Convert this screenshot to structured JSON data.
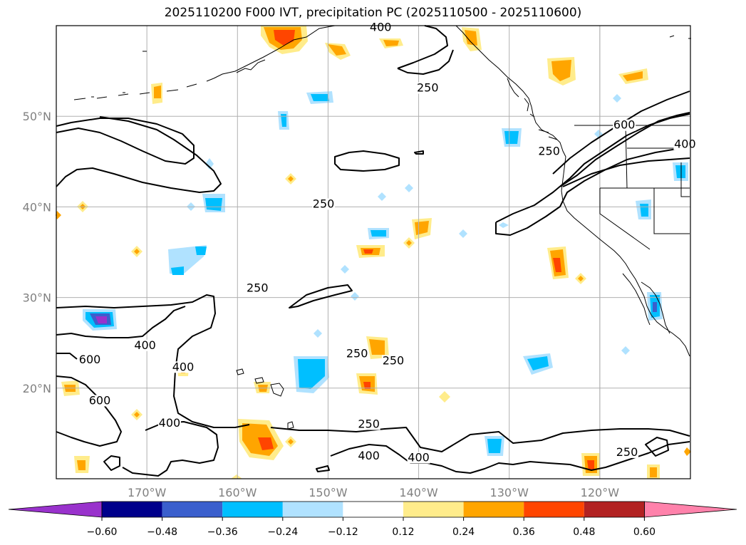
{
  "title": "2025110200 F000 IVT, precipitation PC (2025110500 - 2025110600)",
  "map": {
    "lon_range": [
      -180,
      -110
    ],
    "lat_range": [
      10,
      60
    ],
    "lat_ticks": [
      {
        "lat": 20,
        "label": "20°N"
      },
      {
        "lat": 30,
        "label": "30°N"
      },
      {
        "lat": 40,
        "label": "40°N"
      },
      {
        "lat": 50,
        "label": "50°N"
      }
    ],
    "lon_ticks": [
      {
        "lon": -170,
        "label": "170°W"
      },
      {
        "lon": -160,
        "label": "160°W"
      },
      {
        "lon": -150,
        "label": "150°W"
      },
      {
        "lon": -140,
        "label": "140°W"
      },
      {
        "lon": -130,
        "label": "130°W"
      },
      {
        "lon": -120,
        "label": "120°W"
      }
    ],
    "grid": true,
    "contour_labels": [
      {
        "text": "250",
        "lon": -146.8,
        "lat": 23.5
      },
      {
        "text": "250",
        "lon": -142.8,
        "lat": 22.7
      },
      {
        "text": "250",
        "lon": -139.0,
        "lat": 52.8
      },
      {
        "text": "250",
        "lon": -150.5,
        "lat": 40.0
      },
      {
        "text": "250",
        "lon": -157.8,
        "lat": 30.7
      },
      {
        "text": "400",
        "lon": -144.2,
        "lat": 59.5
      },
      {
        "text": "400",
        "lon": -170.2,
        "lat": 24.4
      },
      {
        "text": "250",
        "lon": -125.6,
        "lat": 45.8
      },
      {
        "text": "600",
        "lon": -117.3,
        "lat": 48.7
      },
      {
        "text": "400",
        "lon": -110.6,
        "lat": 46.6
      },
      {
        "text": "600",
        "lon": -176.3,
        "lat": 22.8
      },
      {
        "text": "400",
        "lon": -166.0,
        "lat": 22.0
      },
      {
        "text": "600",
        "lon": -175.2,
        "lat": 18.3
      },
      {
        "text": "400",
        "lon": -167.5,
        "lat": 15.8
      },
      {
        "text": "250",
        "lon": -145.5,
        "lat": 15.7
      },
      {
        "text": "400",
        "lon": -145.5,
        "lat": 12.2
      },
      {
        "text": "400",
        "lon": -140.0,
        "lat": 12.0
      },
      {
        "text": "250",
        "lon": -117.0,
        "lat": 12.6
      }
    ]
  },
  "colorbar": {
    "ticks": [
      "−0.60",
      "−0.48",
      "−0.36",
      "−0.24",
      "−0.12",
      "0.12",
      "0.24",
      "0.36",
      "0.48",
      "0.60"
    ],
    "colors": [
      "#9932cc",
      "#00008b",
      "#3a5fcd",
      "#00bfff",
      "#b0e2ff",
      "#ffffff",
      "#ffec8b",
      "#ffa500",
      "#ff4500",
      "#b22222",
      "#ff82ab"
    ],
    "extend": "both"
  }
}
